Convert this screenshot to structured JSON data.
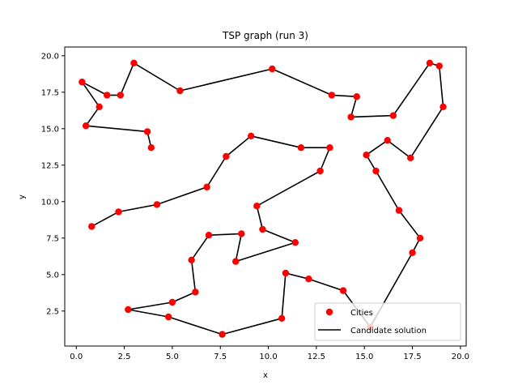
{
  "chart_data": {
    "type": "scatter",
    "title": "TSP graph (run 3)",
    "xlabel": "x",
    "ylabel": "y",
    "xlim": [
      -0.6,
      20.3
    ],
    "ylim": [
      0.1,
      20.6
    ],
    "xticks": [
      0.0,
      2.5,
      5.0,
      7.5,
      10.0,
      12.5,
      15.0,
      17.5,
      20.0
    ],
    "yticks": [
      2.5,
      5.0,
      7.5,
      10.0,
      12.5,
      15.0,
      17.5,
      20.0
    ],
    "xtick_labels": [
      "0.0",
      "2.5",
      "5.0",
      "7.5",
      "10.0",
      "12.5",
      "15.0",
      "17.5",
      "20.0"
    ],
    "ytick_labels": [
      "2.5",
      "5.0",
      "7.5",
      "10.0",
      "12.5",
      "15.0",
      "17.5",
      "20.0"
    ],
    "legend": {
      "placement": "lower-right",
      "entries": [
        "Cities",
        "Candidate solution"
      ]
    },
    "colors": {
      "cities": "#ff0000",
      "route": "#000000"
    },
    "series": [
      {
        "name": "Candidate solution",
        "kind": "line",
        "points": [
          [
            3.9,
            13.7
          ],
          [
            3.7,
            14.8
          ],
          [
            0.5,
            15.2
          ],
          [
            1.2,
            16.5
          ],
          [
            0.3,
            18.2
          ],
          [
            1.6,
            17.3
          ],
          [
            2.3,
            17.3
          ],
          [
            3.0,
            19.5
          ],
          [
            5.4,
            17.6
          ],
          [
            10.2,
            19.1
          ],
          [
            13.3,
            17.3
          ],
          [
            14.6,
            17.2
          ],
          [
            14.3,
            15.8
          ],
          [
            16.5,
            15.9
          ],
          [
            18.4,
            19.5
          ],
          [
            18.9,
            19.3
          ],
          [
            19.1,
            16.5
          ],
          [
            17.4,
            13.0
          ],
          [
            16.2,
            14.2
          ],
          [
            15.1,
            13.2
          ],
          [
            15.6,
            12.1
          ],
          [
            16.8,
            9.4
          ],
          [
            17.9,
            7.5
          ],
          [
            17.5,
            6.5
          ],
          [
            15.3,
            1.4
          ],
          [
            13.9,
            3.9
          ],
          [
            12.1,
            4.7
          ],
          [
            10.9,
            5.1
          ],
          [
            10.7,
            2.0
          ],
          [
            7.6,
            0.9
          ],
          [
            4.8,
            2.1
          ],
          [
            2.7,
            2.6
          ],
          [
            5.0,
            3.1
          ],
          [
            6.2,
            3.8
          ],
          [
            6.0,
            6.0
          ],
          [
            6.9,
            7.7
          ],
          [
            8.6,
            7.8
          ],
          [
            8.3,
            5.9
          ],
          [
            11.4,
            7.2
          ],
          [
            9.7,
            8.1
          ],
          [
            9.4,
            9.7
          ],
          [
            12.7,
            12.1
          ],
          [
            13.2,
            13.7
          ],
          [
            11.7,
            13.7
          ],
          [
            9.1,
            14.5
          ],
          [
            7.8,
            13.1
          ],
          [
            6.8,
            11.0
          ],
          [
            4.2,
            9.8
          ],
          [
            2.2,
            9.3
          ],
          [
            0.8,
            8.3
          ]
        ]
      },
      {
        "name": "Cities",
        "kind": "scatter",
        "points": [
          [
            3.9,
            13.7
          ],
          [
            3.7,
            14.8
          ],
          [
            0.5,
            15.2
          ],
          [
            1.2,
            16.5
          ],
          [
            0.3,
            18.2
          ],
          [
            1.6,
            17.3
          ],
          [
            2.3,
            17.3
          ],
          [
            3.0,
            19.5
          ],
          [
            5.4,
            17.6
          ],
          [
            10.2,
            19.1
          ],
          [
            13.3,
            17.3
          ],
          [
            14.6,
            17.2
          ],
          [
            14.3,
            15.8
          ],
          [
            16.5,
            15.9
          ],
          [
            18.4,
            19.5
          ],
          [
            18.9,
            19.3
          ],
          [
            19.1,
            16.5
          ],
          [
            17.4,
            13.0
          ],
          [
            16.2,
            14.2
          ],
          [
            15.1,
            13.2
          ],
          [
            15.6,
            12.1
          ],
          [
            16.8,
            9.4
          ],
          [
            17.9,
            7.5
          ],
          [
            17.5,
            6.5
          ],
          [
            15.3,
            1.4
          ],
          [
            13.9,
            3.9
          ],
          [
            12.1,
            4.7
          ],
          [
            10.9,
            5.1
          ],
          [
            10.7,
            2.0
          ],
          [
            7.6,
            0.9
          ],
          [
            4.8,
            2.1
          ],
          [
            2.7,
            2.6
          ],
          [
            5.0,
            3.1
          ],
          [
            6.2,
            3.8
          ],
          [
            6.0,
            6.0
          ],
          [
            6.9,
            7.7
          ],
          [
            8.6,
            7.8
          ],
          [
            8.3,
            5.9
          ],
          [
            11.4,
            7.2
          ],
          [
            9.7,
            8.1
          ],
          [
            9.4,
            9.7
          ],
          [
            12.7,
            12.1
          ],
          [
            13.2,
            13.7
          ],
          [
            11.7,
            13.7
          ],
          [
            9.1,
            14.5
          ],
          [
            7.8,
            13.1
          ],
          [
            6.8,
            11.0
          ],
          [
            4.2,
            9.8
          ],
          [
            2.2,
            9.3
          ],
          [
            0.8,
            8.3
          ]
        ]
      }
    ]
  }
}
